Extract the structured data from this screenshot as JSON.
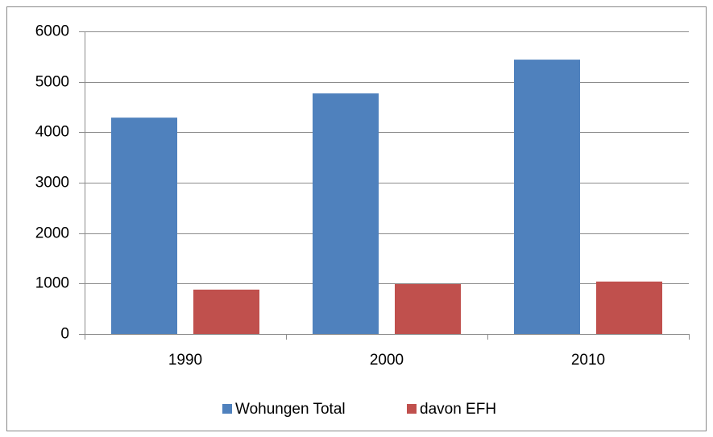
{
  "chart_data": {
    "type": "bar",
    "categories": [
      "1990",
      "2000",
      "2010"
    ],
    "series": [
      {
        "name": "Wohungen Total",
        "color": "#4f81bd",
        "values": [
          4290,
          4770,
          5440
        ]
      },
      {
        "name": "davon EFH",
        "color": "#c0504d",
        "values": [
          880,
          990,
          1040
        ]
      }
    ],
    "ylim": [
      0,
      6000
    ],
    "yticks": [
      0,
      1000,
      2000,
      3000,
      4000,
      5000,
      6000
    ],
    "grid": true,
    "legend": "bottom"
  }
}
